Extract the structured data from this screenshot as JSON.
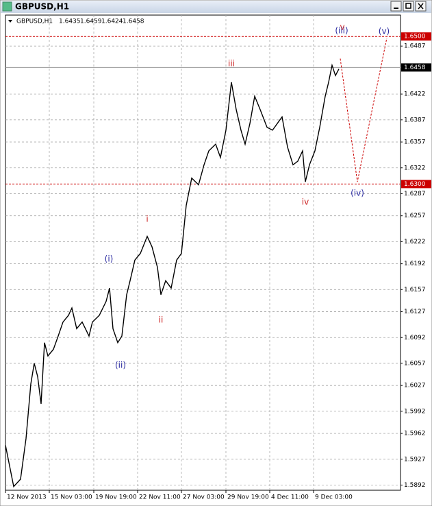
{
  "chart_data": {
    "type": "line",
    "window_title": "GBPUSD,H1",
    "symbol": "GBPUSD,H1",
    "ohlc": [
      1.6435,
      1.6459,
      1.6424,
      1.6458
    ],
    "series": [
      {
        "color": "#000000",
        "x": [
          0,
          12,
          22,
          30,
          37,
          42,
          47,
          52,
          57,
          62,
          70,
          77,
          84,
          92,
          97,
          104,
          112,
          122,
          127,
          137,
          147,
          152,
          157,
          164,
          170,
          177,
          182,
          189,
          197,
          207,
          214,
          222,
          227,
          234,
          242,
          250,
          257,
          264,
          272,
          282,
          290,
          297,
          307,
          314,
          322,
          330,
          337,
          344,
          350,
          357,
          364,
          372,
          382,
          390,
          397,
          404,
          412,
          420,
          427,
          434,
          438,
          444,
          452,
          459,
          467,
          472,
          477,
          482,
          487
        ],
        "values": [
          1.5946,
          1.589,
          1.59,
          1.5955,
          1.6029,
          1.6057,
          1.6039,
          1.6002,
          1.6085,
          1.6067,
          1.6076,
          1.6094,
          1.6113,
          1.6122,
          1.6132,
          1.6104,
          1.6113,
          1.6094,
          1.6113,
          1.6122,
          1.6141,
          1.6159,
          1.6104,
          1.6085,
          1.6094,
          1.615,
          1.6169,
          1.6197,
          1.6206,
          1.6229,
          1.6215,
          1.6187,
          1.615,
          1.6169,
          1.6159,
          1.6197,
          1.6206,
          1.6271,
          1.6308,
          1.6299,
          1.6326,
          1.6345,
          1.6354,
          1.6336,
          1.6373,
          1.6438,
          1.6401,
          1.6373,
          1.6354,
          1.6382,
          1.6419,
          1.6401,
          1.6377,
          1.6373,
          1.6382,
          1.6391,
          1.635,
          1.6326,
          1.6331,
          1.6345,
          1.6303,
          1.6326,
          1.6345,
          1.6377,
          1.6419,
          1.6438,
          1.6461,
          1.6447,
          1.6456
        ]
      },
      {
        "color": "#cc0000",
        "dashed": true,
        "x": [
          489,
          514,
          557
        ],
        "values": [
          1.647,
          1.6303,
          1.6498
        ]
      }
    ],
    "levels": [
      {
        "value": 1.65,
        "label": "1.6500",
        "color": "#cc0000"
      },
      {
        "value": 1.63,
        "label": "1.6300",
        "color": "#cc0000"
      }
    ],
    "price_line": 1.6458,
    "annotations": [
      {
        "text": "i",
        "color": "#cc2222"
      },
      {
        "text": "ii",
        "color": "#cc2222"
      },
      {
        "text": "iii",
        "color": "#cc2222"
      },
      {
        "text": "iv",
        "color": "#cc2222"
      },
      {
        "text": "v",
        "color": "#cc2222"
      },
      {
        "text": "(i)",
        "color": "#2a2aa0"
      },
      {
        "text": "(ii)",
        "color": "#2a2aa0"
      },
      {
        "text": "(iii)",
        "color": "#2a2aa0"
      },
      {
        "text": "(iv)",
        "color": "#2a2aa0"
      },
      {
        "text": "(v)",
        "color": "#2a2aa0"
      }
    ],
    "xlim": [
      0,
      577
    ],
    "xticks": [
      {
        "value": 0,
        "label": "12 Nov 2013"
      },
      {
        "value": 64,
        "label": "15 Nov 03:00"
      },
      {
        "value": 129,
        "label": "19 Nov 19:00"
      },
      {
        "value": 193,
        "label": "22 Nov 11:00"
      },
      {
        "value": 257,
        "label": "27 Nov 03:00"
      },
      {
        "value": 322,
        "label": "29 Nov 19:00"
      },
      {
        "value": 386,
        "label": "4 Dec 11:00"
      },
      {
        "value": 450,
        "label": "9 Dec 03:00"
      }
    ],
    "ylim": [
      1.5885,
      1.6529
    ],
    "yticks": [
      1.6487,
      1.6422,
      1.6387,
      1.6357,
      1.6322,
      1.6287,
      1.6257,
      1.6222,
      1.6192,
      1.6157,
      1.6127,
      1.6092,
      1.6057,
      1.6027,
      1.5992,
      1.5962,
      1.5927,
      1.5892
    ],
    "grid": true
  }
}
